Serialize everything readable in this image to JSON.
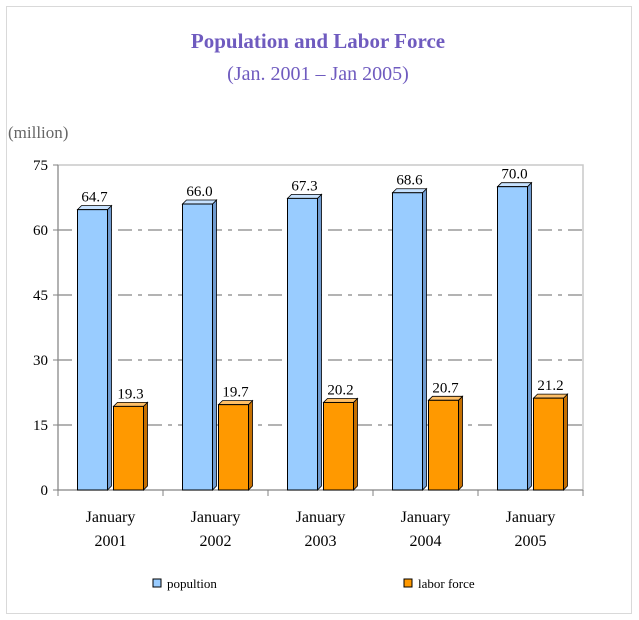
{
  "chart_data": {
    "type": "bar",
    "title": "Population and Labor Force",
    "subtitle": "(Jan. 2001 – Jan 2005)",
    "ylabel": "(million)",
    "xlabel": "",
    "ylim": [
      0,
      75
    ],
    "yticks": [
      "0",
      "15",
      "30",
      "45",
      "60",
      "75"
    ],
    "categories": [
      [
        "January",
        "2001"
      ],
      [
        "January",
        "2002"
      ],
      [
        "January",
        "2003"
      ],
      [
        "January",
        "2004"
      ],
      [
        "January",
        "2005"
      ]
    ],
    "series": [
      {
        "name": "popultion",
        "values": [
          64.7,
          66.0,
          67.3,
          68.6,
          70.0
        ],
        "labels": [
          "64.7",
          "66.0",
          "67.3",
          "68.6",
          "70.0"
        ],
        "color": "#99ccff"
      },
      {
        "name": "labor force",
        "values": [
          19.3,
          19.7,
          20.2,
          20.7,
          21.2
        ],
        "labels": [
          "19.3",
          "19.7",
          "20.2",
          "20.7",
          "21.2"
        ],
        "color": "#ff9900"
      }
    ],
    "grid": true,
    "legend_position": "bottom",
    "title_color": "#6f5bbf"
  }
}
